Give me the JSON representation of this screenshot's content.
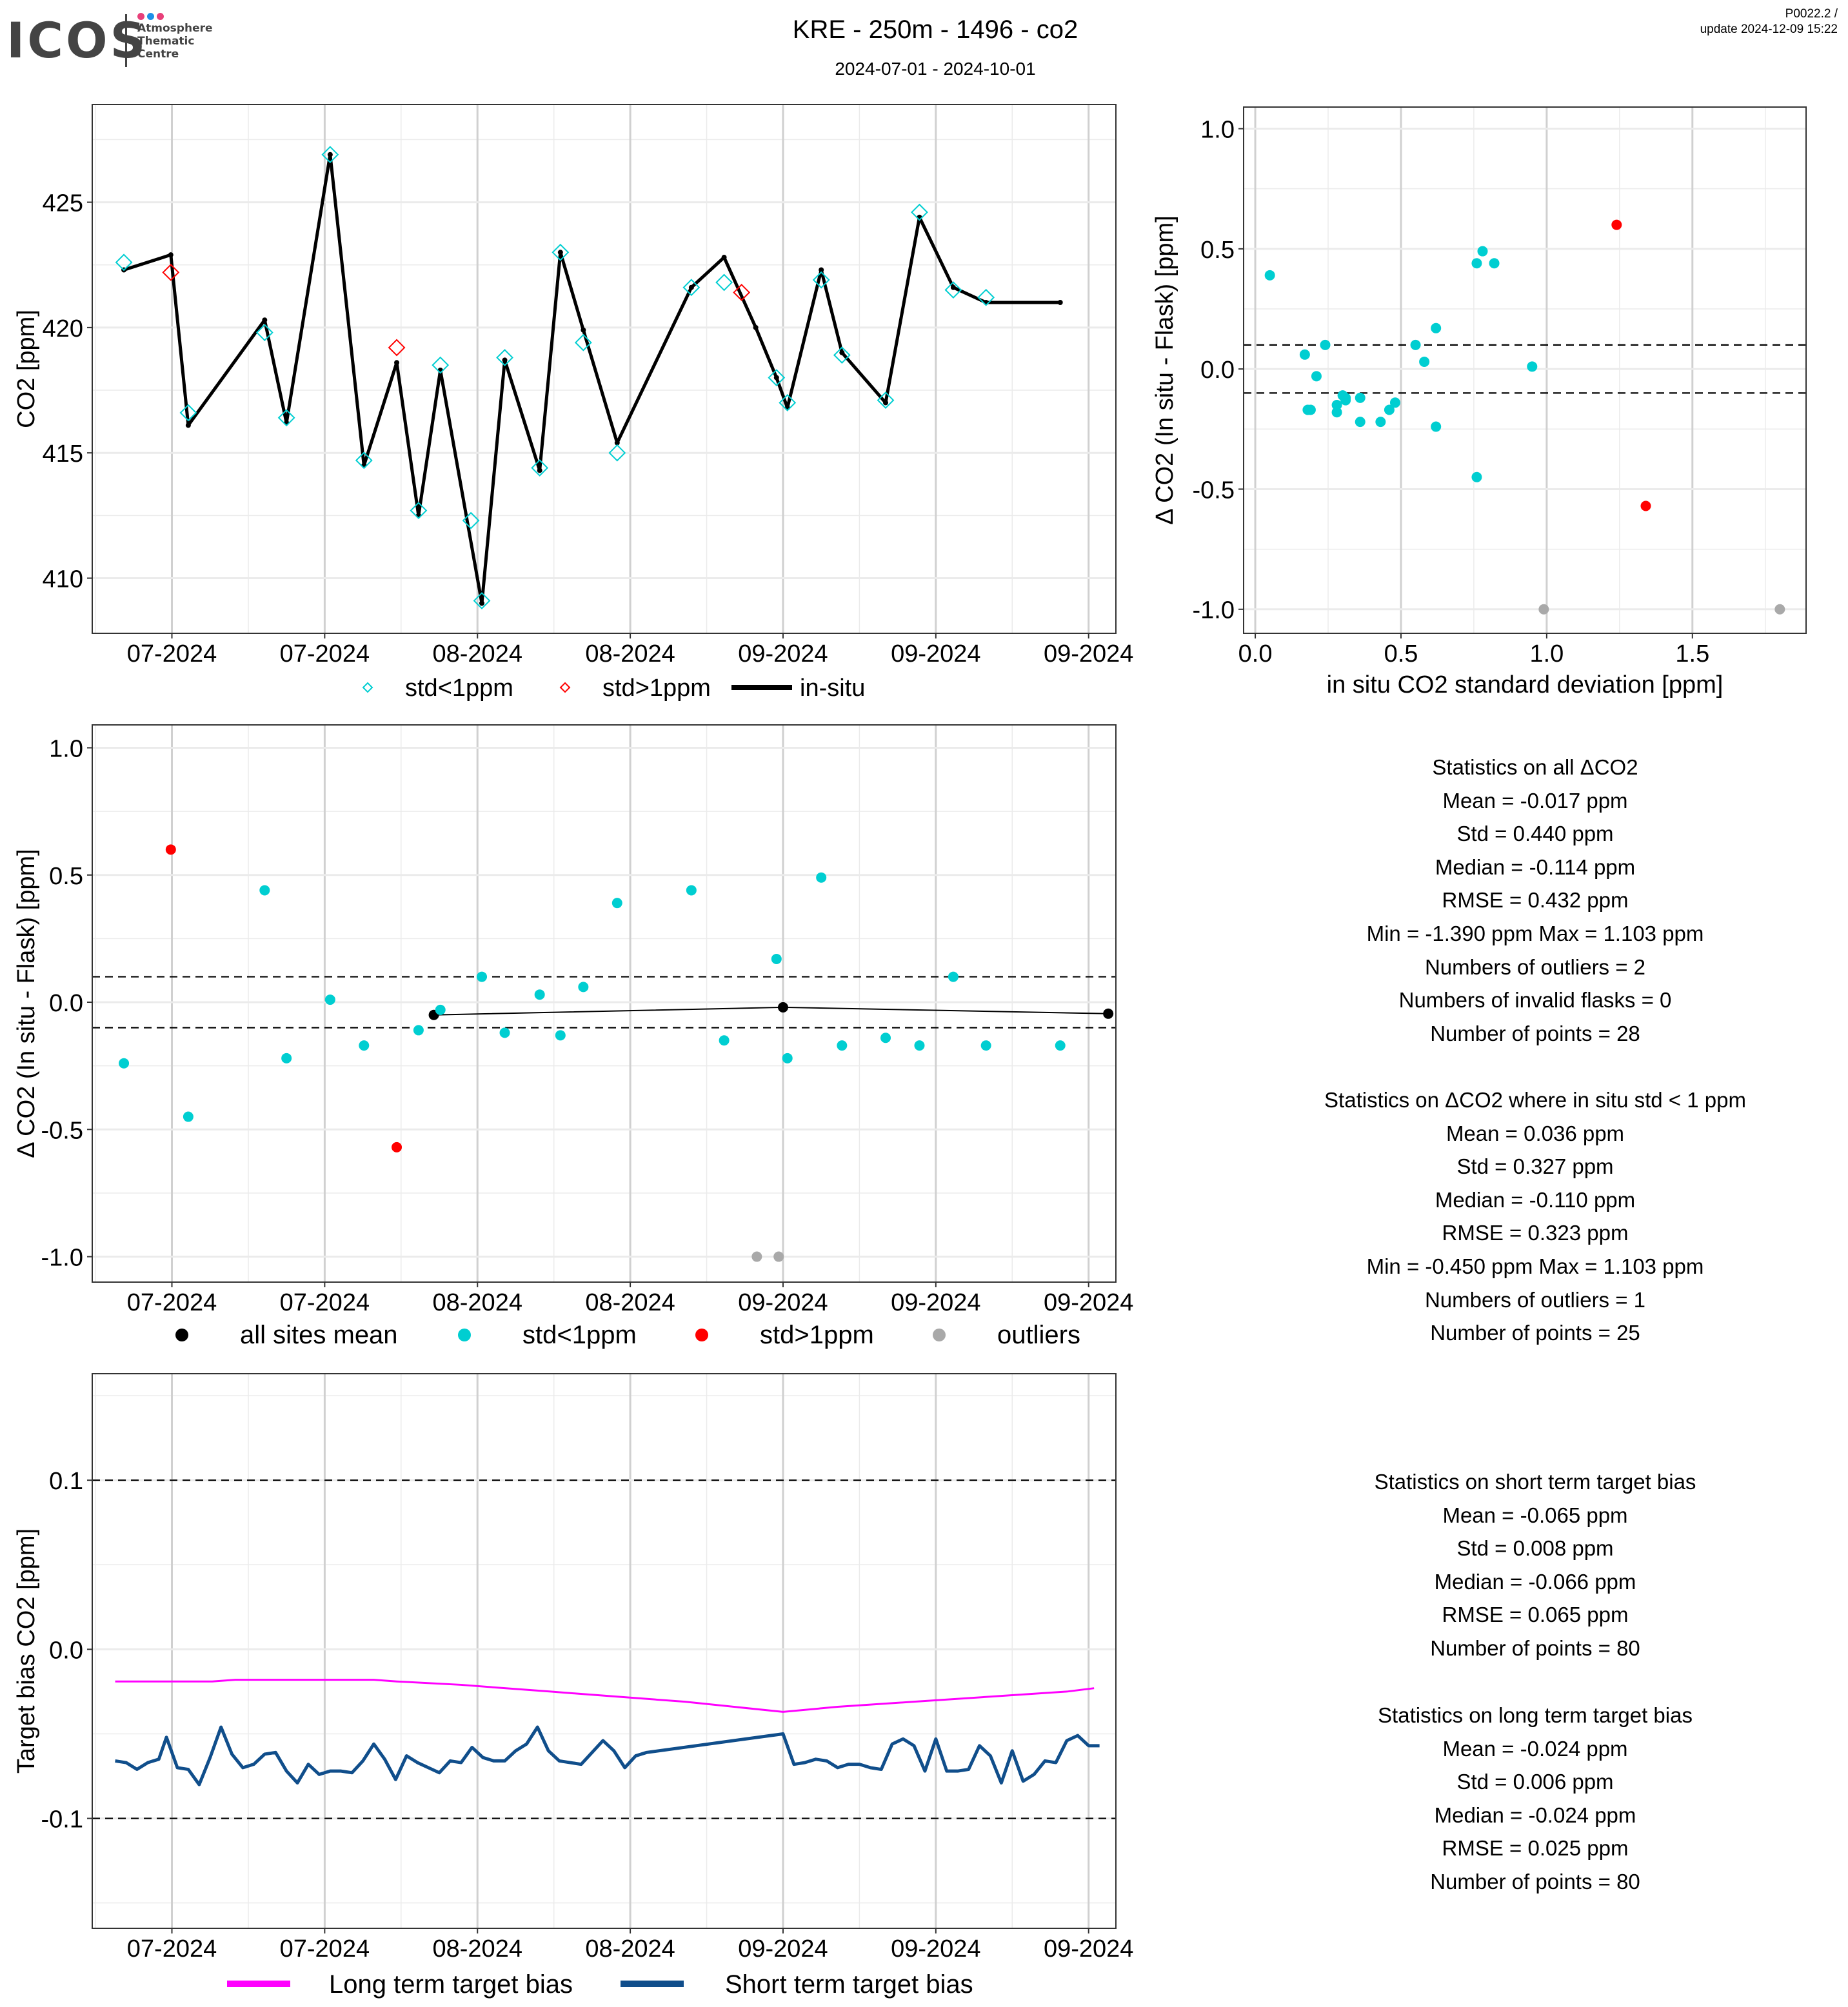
{
  "header": {
    "logo_name": "ICOS",
    "logo_lines": [
      "Atmosphere",
      "Thematic",
      "Centre"
    ],
    "logo_dot_colors": [
      "#e8407a",
      "#1e90e8",
      "#e8407a"
    ],
    "title": "KRE - 250m - 1496 - co2",
    "date_range": "2024-07-01 - 2024-10-01",
    "version": "P0022.2 /",
    "update": "update  2024-12-09 15:22"
  },
  "colors": {
    "std_lt_1": "#00CED1",
    "std_gt_1": "#FF0000",
    "outlier": "#A9A9A9",
    "insitu": "#000000",
    "long_term": "#FF00FF",
    "short_term": "#104E8B"
  },
  "chart_data": [
    {
      "id": "co2_timeseries",
      "type": "line",
      "title": "",
      "xlabel": "",
      "ylabel": "CO2 [ppm]",
      "x_unit": "days since first labeled tick",
      "x_ticks": [
        0,
        14,
        28,
        42,
        56,
        70,
        84
      ],
      "x_tick_labels": [
        "07-2024",
        "07-2024",
        "08-2024",
        "08-2024",
        "09-2024",
        "09-2024",
        "09-2024"
      ],
      "xlim": [
        -7.3,
        86.5
      ],
      "ylim": [
        407.8,
        428.9
      ],
      "y_ticks": [
        410,
        415,
        420,
        425
      ],
      "y_tick_labels": [
        "410",
        "415",
        "420",
        "425"
      ],
      "grid": true,
      "legend_position": "bottom",
      "legend": [
        {
          "label": "std<1ppm",
          "marker": "diamond-open",
          "color": "#00CED1"
        },
        {
          "label": "std>1ppm",
          "marker": "diamond-open",
          "color": "#FF0000"
        },
        {
          "label": "in-situ",
          "marker": "line",
          "color": "#000000"
        }
      ],
      "series": [
        {
          "name": "in-situ",
          "x": [
            -4.4,
            -0.1,
            1.5,
            8.5,
            10.5,
            14.5,
            17.6,
            20.6,
            22.6,
            24.6,
            28.4,
            30.5,
            33.7,
            35.6,
            37.7,
            40.8,
            47.6,
            50.6,
            53.5,
            55.4,
            56.4,
            59.5,
            61.4,
            65.4,
            68.5,
            71.6,
            74.6,
            81.4
          ],
          "y": [
            422.3,
            422.9,
            416.1,
            420.3,
            416.2,
            426.9,
            414.5,
            418.6,
            412.5,
            418.3,
            409.0,
            418.7,
            414.3,
            423.0,
            419.9,
            415.4,
            421.6,
            422.8,
            420.0,
            418.0,
            416.8,
            422.3,
            419.0,
            417.0,
            424.4,
            421.6,
            421.0,
            421.0
          ]
        },
        {
          "name": "std<1ppm",
          "x": [
            -4.4,
            1.5,
            8.5,
            10.5,
            14.5,
            17.6,
            22.6,
            24.6,
            27.4,
            28.4,
            30.5,
            33.7,
            35.6,
            37.7,
            40.8,
            47.6,
            50.6,
            55.4,
            56.4,
            59.5,
            61.4,
            65.4,
            68.5,
            71.6,
            74.6
          ],
          "y": [
            422.6,
            416.6,
            419.8,
            416.4,
            426.9,
            414.7,
            412.7,
            418.5,
            412.3,
            409.1,
            418.8,
            414.4,
            423.0,
            419.4,
            415.0,
            421.6,
            421.8,
            418.0,
            417.0,
            421.9,
            418.9,
            417.1,
            424.6,
            421.5,
            421.2
          ]
        },
        {
          "name": "std>1ppm",
          "x": [
            -0.1,
            20.6,
            52.2
          ],
          "y": [
            422.2,
            419.2,
            421.4
          ]
        }
      ]
    },
    {
      "id": "delta_vs_std",
      "type": "scatter",
      "xlabel": "in situ CO2 standard deviation [ppm]",
      "ylabel": "Δ CO2 (In situ - Flask) [ppm]",
      "xlim": [
        -0.04,
        1.89
      ],
      "ylim": [
        -1.1,
        1.09
      ],
      "x_ticks": [
        0.0,
        0.5,
        1.0,
        1.5
      ],
      "x_tick_labels": [
        "0.0",
        "0.5",
        "1.0",
        "1.5"
      ],
      "y_ticks": [
        -1.0,
        -0.5,
        0.0,
        0.5,
        1.0
      ],
      "y_tick_labels": [
        "-1.0",
        "-0.5",
        "0.0",
        "0.5",
        "1.0"
      ],
      "hlines": [
        0.1,
        -0.1
      ],
      "grid": true,
      "series": [
        {
          "name": "std<1ppm",
          "x": [
            0.05,
            0.17,
            0.18,
            0.19,
            0.21,
            0.24,
            0.28,
            0.28,
            0.3,
            0.31,
            0.36,
            0.36,
            0.43,
            0.46,
            0.48,
            0.55,
            0.58,
            0.62,
            0.62,
            0.76,
            0.76,
            0.78,
            0.82,
            0.95,
            0.31
          ],
          "y": [
            0.39,
            0.06,
            -0.17,
            -0.17,
            -0.03,
            0.1,
            -0.15,
            -0.18,
            -0.11,
            -0.13,
            -0.12,
            -0.22,
            -0.22,
            -0.17,
            -0.14,
            0.1,
            0.03,
            0.17,
            -0.24,
            0.44,
            -0.45,
            0.49,
            0.44,
            0.01,
            -0.12
          ]
        },
        {
          "name": "std>1ppm",
          "x": [
            1.24,
            1.34
          ],
          "y": [
            0.6,
            -0.57
          ]
        },
        {
          "name": "outliers",
          "x": [
            0.99,
            1.8
          ],
          "y": [
            -1.0,
            -1.0
          ]
        }
      ]
    },
    {
      "id": "delta_timeseries",
      "type": "scatter",
      "xlabel": "",
      "ylabel": "Δ CO2 (In situ - Flask) [ppm]",
      "x_unit": "days since first labeled tick",
      "x_ticks": [
        0,
        14,
        28,
        42,
        56,
        70,
        84
      ],
      "x_tick_labels": [
        "07-2024",
        "07-2024",
        "08-2024",
        "08-2024",
        "09-2024",
        "09-2024",
        "09-2024"
      ],
      "xlim": [
        -7.3,
        86.5
      ],
      "ylim": [
        -1.1,
        1.09
      ],
      "y_ticks": [
        -1.0,
        -0.5,
        0.0,
        0.5,
        1.0
      ],
      "y_tick_labels": [
        "-1.0",
        "-0.5",
        "0.0",
        "0.5",
        "1.0"
      ],
      "hlines": [
        0.1,
        -0.1
      ],
      "grid": true,
      "legend_position": "bottom",
      "legend": [
        {
          "label": "all sites mean",
          "color": "#000000"
        },
        {
          "label": "std<1ppm",
          "color": "#00CED1"
        },
        {
          "label": "std>1ppm",
          "color": "#FF0000"
        },
        {
          "label": "outliers",
          "color": "#A9A9A9"
        }
      ],
      "series": [
        {
          "name": "all sites mean",
          "x": [
            24.0,
            56.0,
            85.8
          ],
          "y": [
            -0.05,
            -0.02,
            -0.045
          ]
        },
        {
          "name": "std<1ppm",
          "x": [
            -4.4,
            8.5,
            1.5,
            10.5,
            14.5,
            17.6,
            22.6,
            24.6,
            28.4,
            30.5,
            33.7,
            35.6,
            37.7,
            40.8,
            47.6,
            50.6,
            55.4,
            56.4,
            59.5,
            61.4,
            65.4,
            68.5,
            71.6,
            74.6,
            81.4
          ],
          "y": [
            -0.24,
            0.44,
            -0.45,
            -0.22,
            0.01,
            -0.17,
            -0.11,
            -0.03,
            0.1,
            -0.12,
            0.03,
            -0.13,
            0.06,
            0.39,
            0.44,
            -0.15,
            0.17,
            -0.22,
            0.49,
            -0.17,
            -0.14,
            -0.17,
            0.1,
            -0.17,
            -0.17
          ]
        },
        {
          "name": "std>1ppm",
          "x": [
            -0.1,
            20.6
          ],
          "y": [
            0.6,
            -0.57
          ]
        },
        {
          "name": "outliers",
          "x": [
            53.6,
            55.6
          ],
          "y": [
            -1.0,
            -1.0
          ]
        }
      ]
    },
    {
      "id": "target_bias",
      "type": "line",
      "xlabel": "",
      "ylabel": "Target bias CO2 [ppm]",
      "x_unit": "days since first labeled tick",
      "x_ticks": [
        0,
        14,
        28,
        42,
        56,
        70,
        84
      ],
      "x_tick_labels": [
        "07-2024",
        "07-2024",
        "08-2024",
        "08-2024",
        "09-2024",
        "09-2024",
        "09-2024"
      ],
      "xlim": [
        -7.3,
        86.5
      ],
      "ylim": [
        -0.165,
        0.163
      ],
      "y_ticks": [
        -0.1,
        0.0,
        0.1
      ],
      "y_tick_labels": [
        "-0.1",
        "0.0",
        "0.1"
      ],
      "hlines": [
        0.1,
        -0.1
      ],
      "grid": true,
      "legend_position": "bottom",
      "legend": [
        {
          "label": "Long term target bias",
          "color": "#FF00FF"
        },
        {
          "label": "Short term target bias",
          "color": "#104E8B"
        }
      ],
      "series": [
        {
          "name": "Long term target bias",
          "x": [
            -5.2,
            3.7,
            5.8,
            18.5,
            20.6,
            26.5,
            30.5,
            34.7,
            40.8,
            47.0,
            56.0,
            61.0,
            68.0,
            75.0,
            82.0,
            84.5
          ],
          "y": [
            -0.019,
            -0.019,
            -0.018,
            -0.018,
            -0.019,
            -0.021,
            -0.023,
            -0.025,
            -0.028,
            -0.031,
            -0.037,
            -0.034,
            -0.031,
            -0.028,
            -0.025,
            -0.023
          ]
        },
        {
          "name": "Short term target bias",
          "x": [
            -5.2,
            -4.2,
            -3.2,
            -2.2,
            -1.2,
            -0.5,
            0.5,
            1.5,
            2.5,
            3.5,
            4.5,
            5.5,
            6.5,
            7.5,
            8.5,
            9.5,
            10.5,
            11.5,
            12.5,
            13.5,
            14.5,
            15.5,
            16.5,
            17.5,
            18.5,
            19.5,
            20.5,
            21.5,
            22.5,
            23.5,
            24.5,
            25.5,
            26.5,
            27.5,
            28.5,
            29.5,
            30.5,
            31.5,
            32.5,
            33.5,
            34.5,
            35.5,
            36.5,
            37.5,
            38.5,
            39.5,
            40.5,
            41.5,
            42.5,
            43.5,
            56.0,
            57.0,
            58.0,
            59.0,
            60.0,
            61.0,
            62.0,
            63.0,
            64.0,
            65.0,
            66.0,
            67.0,
            68.0,
            69.0,
            70.0,
            71.0,
            72.0,
            73.0,
            74.0,
            75.0,
            76.0,
            77.0,
            78.0,
            79.0,
            80.0,
            81.0,
            82.0,
            83.0,
            84.0,
            85.0
          ],
          "y": [
            -0.066,
            -0.067,
            -0.071,
            -0.067,
            -0.065,
            -0.052,
            -0.07,
            -0.071,
            -0.08,
            -0.064,
            -0.046,
            -0.062,
            -0.07,
            -0.068,
            -0.062,
            -0.061,
            -0.072,
            -0.079,
            -0.068,
            -0.074,
            -0.072,
            -0.072,
            -0.073,
            -0.066,
            -0.056,
            -0.065,
            -0.077,
            -0.063,
            -0.067,
            -0.07,
            -0.073,
            -0.066,
            -0.067,
            -0.058,
            -0.064,
            -0.066,
            -0.066,
            -0.06,
            -0.056,
            -0.046,
            -0.06,
            -0.066,
            -0.067,
            -0.068,
            -0.061,
            -0.054,
            -0.06,
            -0.07,
            -0.063,
            -0.061,
            -0.05,
            -0.068,
            -0.067,
            -0.065,
            -0.066,
            -0.07,
            -0.068,
            -0.068,
            -0.07,
            -0.071,
            -0.056,
            -0.053,
            -0.057,
            -0.072,
            -0.053,
            -0.072,
            -0.072,
            -0.071,
            -0.057,
            -0.063,
            -0.079,
            -0.06,
            -0.078,
            -0.074,
            -0.066,
            -0.067,
            -0.054,
            -0.051,
            -0.057,
            -0.057
          ]
        }
      ]
    }
  ],
  "stats": {
    "all": {
      "title": "Statistics on all ΔCO2",
      "lines": [
        "Mean =  -0.017 ppm",
        "Std =  0.440 ppm",
        "Median =  -0.114 ppm",
        "RMSE =  0.432 ppm",
        "Min =  -1.390 ppm Max =  1.103 ppm",
        "Numbers of outliers =  2",
        "Numbers of invalid flasks =  0",
        "Number of points =  28"
      ]
    },
    "std_lt_1": {
      "title": "Statistics on ΔCO2 where in situ std < 1 ppm",
      "lines": [
        "Mean =  0.036 ppm",
        "Std =  0.327 ppm",
        "Median =  -0.110 ppm",
        "RMSE =  0.323 ppm",
        "Min =  -0.450 ppm Max =  1.103 ppm",
        "Numbers of outliers =  1",
        "Number of points =  25"
      ]
    },
    "short_term": {
      "title": "Statistics on short term target bias",
      "lines": [
        "Mean =  -0.065 ppm",
        "Std =  0.008 ppm",
        "Median =  -0.066 ppm",
        "RMSE =  0.065 ppm",
        "Number of points =  80"
      ]
    },
    "long_term": {
      "title": "Statistics on long term target bias",
      "lines": [
        "Mean =  -0.024 ppm",
        "Std =  0.006 ppm",
        "Median =  -0.024 ppm",
        "RMSE =  0.025 ppm",
        "Number of points =  80"
      ]
    }
  }
}
